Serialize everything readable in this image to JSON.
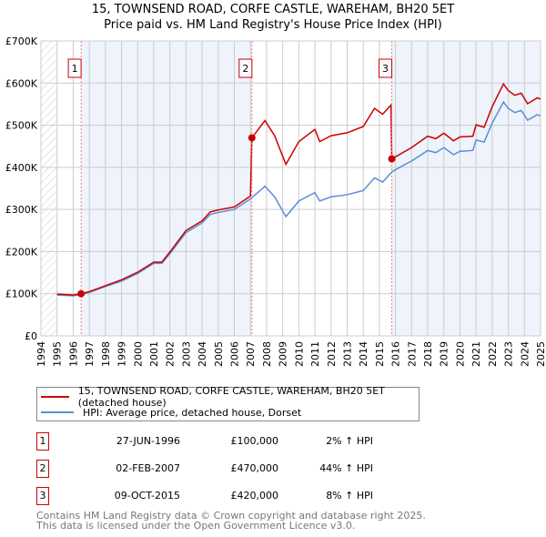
{
  "chart_data": {
    "type": "line",
    "title": "15, TOWNSEND ROAD, CORFE CASTLE, WAREHAM, BH20 5ET",
    "subtitle": "Price paid vs. HM Land Registry's House Price Index (HPI)",
    "xlim": [
      1994,
      2025
    ],
    "ylim": [
      0,
      700000
    ],
    "y_ticks": [
      {
        "v": 0,
        "label": "£0"
      },
      {
        "v": 100000,
        "label": "£100K"
      },
      {
        "v": 200000,
        "label": "£200K"
      },
      {
        "v": 300000,
        "label": "£300K"
      },
      {
        "v": 400000,
        "label": "£400K"
      },
      {
        "v": 500000,
        "label": "£500K"
      },
      {
        "v": 600000,
        "label": "£600K"
      },
      {
        "v": 700000,
        "label": "£700K"
      }
    ],
    "x_ticks": [
      "1994",
      "1995",
      "1996",
      "1997",
      "1998",
      "1999",
      "2000",
      "2001",
      "2002",
      "2003",
      "2004",
      "2005",
      "2006",
      "2007",
      "2008",
      "2009",
      "2010",
      "2011",
      "2012",
      "2013",
      "2014",
      "2015",
      "2016",
      "2017",
      "2018",
      "2019",
      "2020",
      "2021",
      "2022",
      "2023",
      "2024",
      "2025"
    ],
    "grid": true,
    "series": [
      {
        "name": "15, TOWNSEND ROAD, CORFE CASTLE, WAREHAM, BH20 5ET (detached house)",
        "color": "#cc0000",
        "x": [
          1995,
          1996,
          1996.5,
          1997,
          1998,
          1999,
          2000,
          2001,
          2001.5,
          2002,
          2003,
          2004,
          2004.5,
          2005,
          2006,
          2007,
          2007.09,
          2007.9,
          2008.5,
          2009.2,
          2010,
          2011,
          2011.3,
          2012,
          2013,
          2014,
          2014.7,
          2015.2,
          2015.72,
          2015.77,
          2016.5,
          2017,
          2018,
          2018.5,
          2019,
          2019.6,
          2020,
          2020.8,
          2021,
          2021.5,
          2022,
          2022.7,
          2023,
          2023.4,
          2023.8,
          2024.2,
          2024.8,
          2025
        ],
        "y": [
          99,
          97,
          100,
          105,
          119,
          133,
          151,
          175,
          175,
          199,
          250,
          273,
          294,
          299,
          306,
          332,
          470,
          511,
          475,
          407,
          461,
          490,
          461,
          475,
          482,
          497,
          540,
          526,
          548,
          420,
          436,
          447,
          474,
          468,
          481,
          463,
          472,
          474,
          501,
          495,
          544,
          598,
          582,
          571,
          576,
          551,
          565,
          562
        ]
      },
      {
        "name": "HPI: Average price, detached house, Dorset",
        "color": "#5b8fd4",
        "x": [
          1995,
          1996,
          1996.5,
          1997,
          1998,
          1999,
          2000,
          2001,
          2001.5,
          2002,
          2003,
          2004,
          2004.5,
          2005,
          2006,
          2007,
          2007.9,
          2008.5,
          2009.2,
          2010,
          2011,
          2011.3,
          2012,
          2013,
          2014,
          2014.7,
          2015.2,
          2015.8,
          2016.5,
          2017,
          2018,
          2018.5,
          2019,
          2019.6,
          2020,
          2020.8,
          2021,
          2021.5,
          2022,
          2022.7,
          2023,
          2023.4,
          2023.8,
          2024.2,
          2024.8,
          2025
        ],
        "y": [
          97,
          95,
          98,
          103,
          117,
          130,
          148,
          172,
          172,
          195,
          245,
          268,
          288,
          293,
          300,
          325,
          355,
          330,
          283,
          320,
          340,
          320,
          330,
          335,
          345,
          375,
          365,
          390,
          405,
          415,
          440,
          435,
          447,
          430,
          438,
          440,
          465,
          460,
          505,
          555,
          540,
          530,
          535,
          512,
          525,
          522
        ]
      }
    ],
    "y_unit": "thousand GBP",
    "sales": [
      {
        "n": "1",
        "x": 1996.49,
        "price": 100,
        "date": "27-JUN-1996",
        "price_label": "£100,000",
        "hpi_label": "2% ↑ HPI"
      },
      {
        "n": "2",
        "x": 2007.09,
        "price": 470,
        "date": "02-FEB-2007",
        "price_label": "£470,000",
        "hpi_label": "44% ↑ HPI"
      },
      {
        "n": "3",
        "x": 2015.77,
        "price": 420,
        "date": "09-OCT-2015",
        "price_label": "£420,000",
        "hpi_label": "8% ↑ HPI"
      }
    ]
  },
  "footer": {
    "line1": "Contains HM Land Registry data © Crown copyright and database right 2025.",
    "line2": "This data is licensed under the Open Government Licence v3.0."
  }
}
